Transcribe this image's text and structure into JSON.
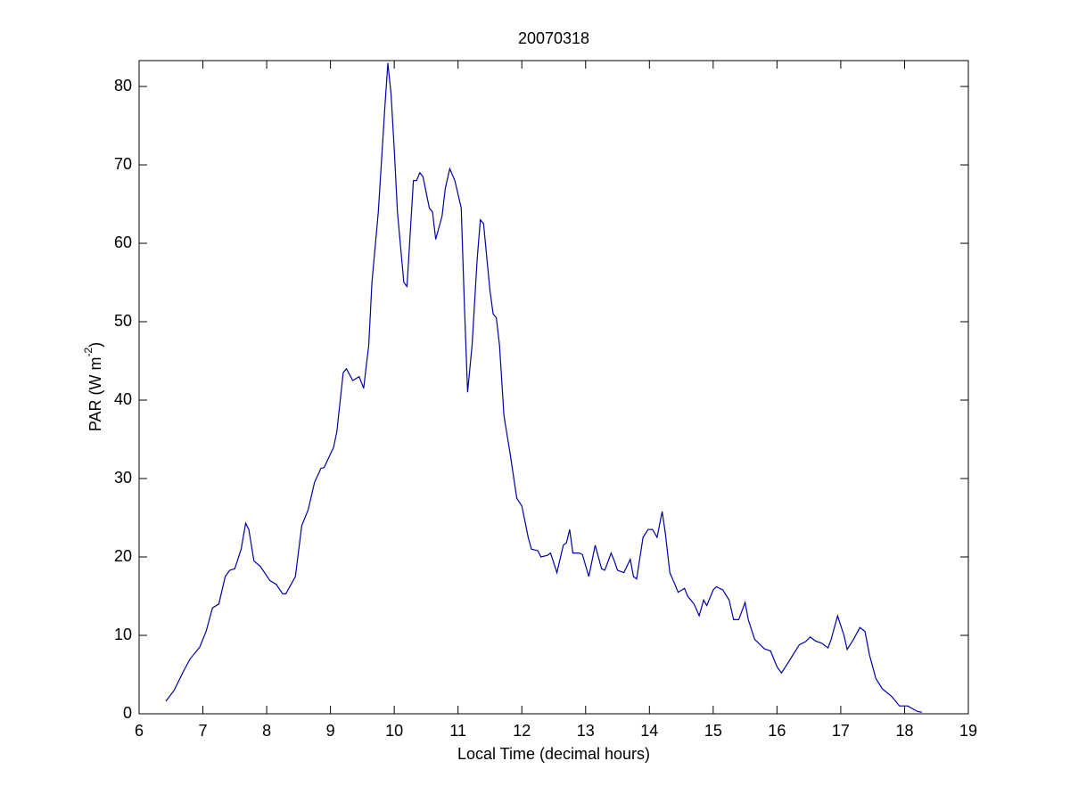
{
  "chart_data": {
    "type": "line",
    "title": "20070318",
    "xlabel": "Local Time (decimal hours)",
    "ylabel": {
      "text": "PAR (W m",
      "superscript": "-2",
      "suffix": ")"
    },
    "xlim": [
      6,
      19
    ],
    "ylim": [
      0,
      83.3
    ],
    "xticks": [
      6,
      7,
      8,
      9,
      10,
      11,
      12,
      13,
      14,
      15,
      16,
      17,
      18,
      19
    ],
    "yticks": [
      0,
      10,
      20,
      30,
      40,
      50,
      60,
      70,
      80
    ],
    "color": "#0000a0",
    "x": [
      6.42,
      6.55,
      6.7,
      6.8,
      6.95,
      7.05,
      7.15,
      7.25,
      7.35,
      7.42,
      7.5,
      7.6,
      7.67,
      7.72,
      7.8,
      7.9,
      8.05,
      8.15,
      8.25,
      8.3,
      8.45,
      8.55,
      8.65,
      8.75,
      8.85,
      8.9,
      9.05,
      9.1,
      9.2,
      9.25,
      9.35,
      9.45,
      9.52,
      9.6,
      9.65,
      9.75,
      9.85,
      9.9,
      9.95,
      10.0,
      10.05,
      10.15,
      10.2,
      10.3,
      10.35,
      10.4,
      10.45,
      10.55,
      10.6,
      10.65,
      10.75,
      10.8,
      10.87,
      10.95,
      11.05,
      11.1,
      11.15,
      11.22,
      11.3,
      11.35,
      11.4,
      11.5,
      11.55,
      11.6,
      11.65,
      11.72,
      11.82,
      11.92,
      12.0,
      12.1,
      12.15,
      12.25,
      12.3,
      12.4,
      12.45,
      12.55,
      12.65,
      12.7,
      12.75,
      12.8,
      12.9,
      12.95,
      13.05,
      13.15,
      13.2,
      13.25,
      13.3,
      13.4,
      13.45,
      13.5,
      13.6,
      13.7,
      13.75,
      13.8,
      13.9,
      13.98,
      14.05,
      14.12,
      14.2,
      14.25,
      14.32,
      14.4,
      14.45,
      14.55,
      14.6,
      14.7,
      14.78,
      14.85,
      14.9,
      15.0,
      15.05,
      15.15,
      15.25,
      15.32,
      15.4,
      15.5,
      15.55,
      15.65,
      15.8,
      15.9,
      16.0,
      16.07,
      16.15,
      16.25,
      16.35,
      16.45,
      16.52,
      16.6,
      16.7,
      16.8,
      16.85,
      16.95,
      17.05,
      17.1,
      17.2,
      17.3,
      17.38,
      17.45,
      17.55,
      17.65,
      17.8,
      17.92,
      18.05,
      18.2,
      18.27
    ],
    "y": [
      1.6,
      3,
      5.5,
      7,
      8.5,
      10.5,
      13.5,
      14,
      17.5,
      18.3,
      18.5,
      21,
      24.3,
      23.5,
      19.5,
      18.8,
      17,
      16.5,
      15.3,
      15.3,
      17.5,
      24,
      26,
      29.5,
      31.3,
      31.4,
      34,
      36,
      43.5,
      44,
      42.5,
      43,
      41.5,
      47,
      55,
      64,
      77,
      83,
      79,
      72,
      64,
      55,
      54.5,
      68,
      68,
      69,
      68.5,
      64.5,
      64,
      60.5,
      63.5,
      67,
      69.5,
      68,
      64.5,
      52,
      41,
      47,
      58,
      63,
      62.5,
      54,
      51,
      50.5,
      47,
      38,
      33,
      27.5,
      26.5,
      22.5,
      21,
      20.8,
      20,
      20.2,
      20.5,
      18,
      21.5,
      21.8,
      23.5,
      20.5,
      20.5,
      20.3,
      17.5,
      21.5,
      20,
      18.5,
      18.3,
      20.5,
      19.5,
      18.3,
      18,
      19.7,
      17.5,
      17.2,
      22.5,
      23.5,
      23.5,
      22.5,
      25.8,
      23,
      18,
      16.5,
      15.5,
      16,
      15,
      14,
      12.5,
      14.5,
      13.8,
      15.8,
      16.2,
      15.8,
      14.5,
      12,
      12,
      14.2,
      12,
      9.5,
      8.3,
      8,
      6,
      5.2,
      6.2,
      7.5,
      8.8,
      9.2,
      9.8,
      9.3,
      9,
      8.4,
      9.5,
      12.5,
      10,
      8.2,
      9.5,
      11,
      10.5,
      7.5,
      4.5,
      3.2,
      2.2,
      1,
      1,
      0.3,
      0.2
    ]
  }
}
